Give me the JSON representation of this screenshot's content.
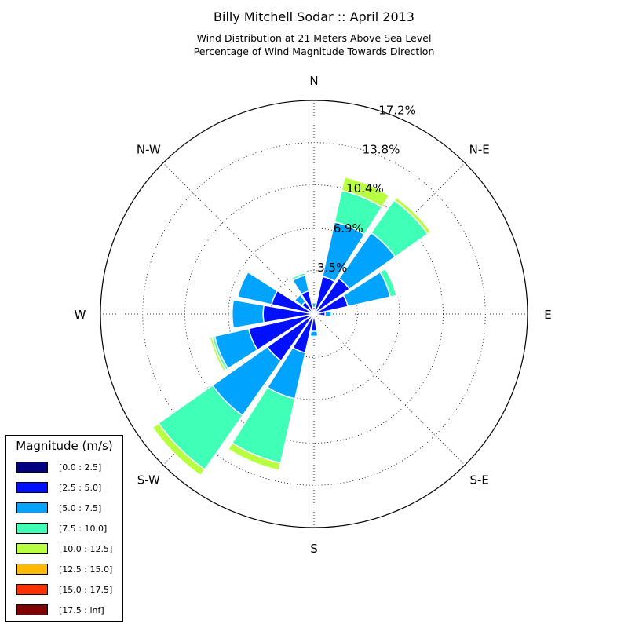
{
  "chart_data": {
    "type": "windrose",
    "title": "Billy Mitchell Sodar :: April 2013",
    "subtitle_lines": [
      "Wind Distribution at 21 Meters Above Sea Level",
      "Percentage of Wind Magnitude Towards Direction"
    ],
    "directions": [
      "N",
      "NNE",
      "NE",
      "ENE",
      "E",
      "ESE",
      "SE",
      "SSE",
      "S",
      "SSW",
      "SW",
      "WSW",
      "W",
      "WNW",
      "NW",
      "NNW"
    ],
    "direction_labels": [
      {
        "label": "N",
        "angle": 0
      },
      {
        "label": "N-E",
        "angle": 45
      },
      {
        "label": "E",
        "angle": 90
      },
      {
        "label": "S-E",
        "angle": 135
      },
      {
        "label": "S",
        "angle": 180
      },
      {
        "label": "S-W",
        "angle": 225
      },
      {
        "label": "W",
        "angle": 270
      },
      {
        "label": "N-W",
        "angle": 315
      }
    ],
    "radial_ticks": [
      "3.5%",
      "6.9%",
      "10.4%",
      "13.8%",
      "17.2%"
    ],
    "radial_tick_values": [
      3.5,
      6.9,
      10.4,
      13.8,
      17.2
    ],
    "rmax": 17.2,
    "legend_title": "Magnitude (m/s)",
    "bins": [
      {
        "label": "[0.0 : 2.5]",
        "color": "#000080"
      },
      {
        "label": "[2.5 : 5.0]",
        "color": "#0010ff"
      },
      {
        "label": "[5.0 : 7.5]",
        "color": "#00a4ff"
      },
      {
        "label": "[7.5 : 10.0]",
        "color": "#40ffb7"
      },
      {
        "label": "[10.0 : 12.5]",
        "color": "#b7ff40"
      },
      {
        "label": "[12.5 : 15.0]",
        "color": "#ffb900"
      },
      {
        "label": "[15.0 : 17.5]",
        "color": "#ff3000"
      },
      {
        "label": "[17.5 : inf]",
        "color": "#800000"
      }
    ],
    "cumulative_by_direction": [
      [
        0.05,
        0.55,
        0.9,
        1.0,
        1.0,
        1.0,
        1.0,
        1.0
      ],
      [
        0.08,
        3.1,
        7.6,
        10.2,
        11.3,
        11.3,
        11.3,
        11.3
      ],
      [
        0.08,
        3.5,
        8.0,
        11.2,
        11.5,
        11.5,
        11.5,
        11.5
      ],
      [
        0.08,
        2.8,
        6.3,
        6.8,
        6.9,
        6.9,
        6.9,
        6.9
      ],
      [
        0.05,
        0.9,
        1.4,
        1.4,
        1.4,
        1.4,
        1.4,
        1.4
      ],
      [
        0.0,
        0.0,
        0.0,
        0.0,
        0.0,
        0.0,
        0.0,
        0.0
      ],
      [
        0.0,
        0.0,
        0.0,
        0.0,
        0.0,
        0.0,
        0.0,
        0.0
      ],
      [
        0.0,
        0.0,
        0.0,
        0.0,
        0.0,
        0.0,
        0.0,
        0.0
      ],
      [
        0.05,
        1.4,
        1.8,
        1.8,
        1.8,
        1.8,
        1.8,
        1.8
      ],
      [
        0.08,
        3.2,
        7.0,
        12.3,
        12.9,
        12.9,
        12.9,
        12.9
      ],
      [
        0.08,
        4.6,
        10.0,
        15.3,
        15.9,
        15.9,
        15.9,
        15.9
      ],
      [
        0.08,
        5.4,
        8.2,
        8.4,
        8.6,
        8.6,
        8.6,
        8.6
      ],
      [
        0.05,
        4.1,
        6.6,
        6.7,
        6.7,
        6.7,
        6.7,
        6.7
      ],
      [
        0.05,
        3.5,
        6.3,
        6.4,
        6.5,
        6.5,
        6.5,
        6.5
      ],
      [
        0.05,
        1.2,
        1.9,
        1.9,
        1.9,
        1.9,
        1.9,
        1.9
      ],
      [
        0.05,
        1.9,
        3.2,
        3.4,
        3.5,
        3.6,
        3.6,
        3.6
      ]
    ]
  }
}
